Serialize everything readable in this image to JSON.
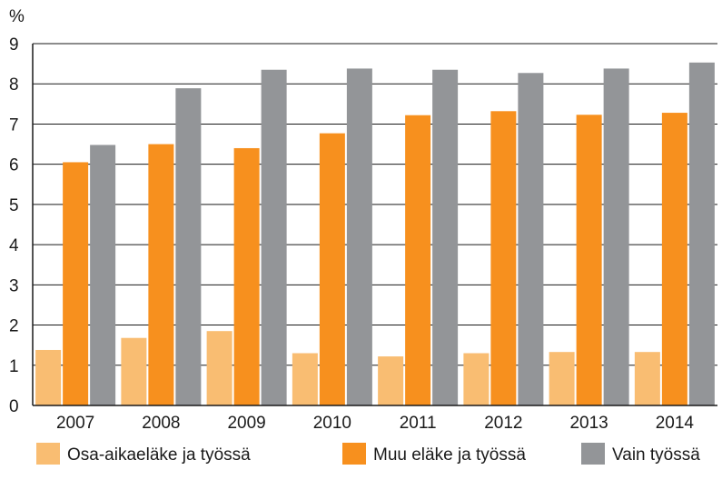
{
  "chart_data": {
    "type": "bar",
    "ylabel": "%",
    "ylim": [
      0,
      9
    ],
    "yticks": [
      0,
      1,
      2,
      3,
      4,
      5,
      6,
      7,
      8,
      9
    ],
    "grid": true,
    "legend_position": "bottom",
    "categories": [
      "2007",
      "2008",
      "2009",
      "2010",
      "2011",
      "2012",
      "2013",
      "2014"
    ],
    "series": [
      {
        "name": "Osa-aikaeläke ja työssä",
        "color": "#f9bd72",
        "values": [
          1.38,
          1.68,
          1.85,
          1.3,
          1.22,
          1.3,
          1.33,
          1.33
        ]
      },
      {
        "name": "Muu eläke ja työssä",
        "color": "#f7901e",
        "values": [
          6.05,
          6.5,
          6.4,
          6.77,
          7.22,
          7.32,
          7.23,
          7.28
        ]
      },
      {
        "name": "Vain työssä",
        "color": "#939598",
        "values": [
          6.48,
          7.89,
          8.35,
          8.38,
          8.35,
          8.27,
          8.38,
          8.53
        ]
      }
    ]
  }
}
